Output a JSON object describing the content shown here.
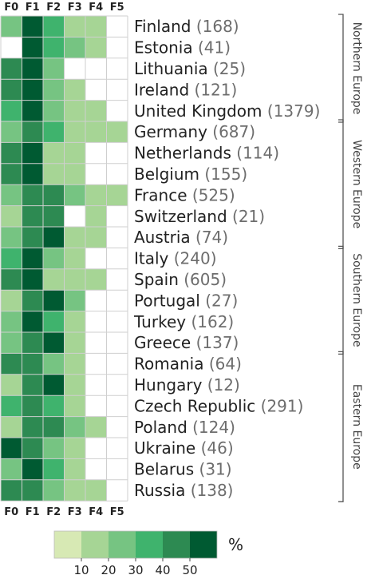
{
  "chart_data": {
    "type": "heatmap",
    "columns": [
      "F0",
      "F1",
      "F2",
      "F3",
      "F4",
      "F5"
    ],
    "rows": [
      {
        "country": "Finland",
        "count": "(168)",
        "values": [
          25,
          57,
          33,
          14,
          14,
          0
        ]
      },
      {
        "country": "Estonia",
        "count": "(41)",
        "values": [
          0,
          57,
          33,
          24,
          14,
          0
        ]
      },
      {
        "country": "Lithuania",
        "count": "(25)",
        "values": [
          43,
          50,
          24,
          0,
          0,
          0
        ]
      },
      {
        "country": "Ireland",
        "count": "(121)",
        "values": [
          48,
          57,
          24,
          14,
          0,
          0
        ]
      },
      {
        "country": "United Kingdom",
        "count": "(1379)",
        "values": [
          33,
          57,
          24,
          14,
          14,
          0
        ]
      },
      {
        "country": "Germany",
        "count": "(687)",
        "values": [
          24,
          48,
          33,
          14,
          14,
          14
        ]
      },
      {
        "country": "Netherlands",
        "count": "(114)",
        "values": [
          43,
          57,
          14,
          14,
          0,
          0
        ]
      },
      {
        "country": "Belgium",
        "count": "(155)",
        "values": [
          43,
          57,
          14,
          14,
          0,
          0
        ]
      },
      {
        "country": "France",
        "count": "(525)",
        "values": [
          24,
          43,
          43,
          24,
          14,
          14
        ]
      },
      {
        "country": "Switzerland",
        "count": "(21)",
        "values": [
          14,
          48,
          43,
          0,
          14,
          0
        ]
      },
      {
        "country": "Austria",
        "count": "(74)",
        "values": [
          24,
          43,
          50,
          14,
          14,
          0
        ]
      },
      {
        "country": "Italy",
        "count": "(240)",
        "values": [
          33,
          57,
          24,
          14,
          0,
          0
        ]
      },
      {
        "country": "Spain",
        "count": "(605)",
        "values": [
          43,
          57,
          14,
          14,
          14,
          0
        ]
      },
      {
        "country": "Portugal",
        "count": "(27)",
        "values": [
          14,
          43,
          50,
          24,
          0,
          0
        ]
      },
      {
        "country": "Turkey",
        "count": "(162)",
        "values": [
          24,
          57,
          33,
          14,
          0,
          0
        ]
      },
      {
        "country": "Greece",
        "count": "(137)",
        "values": [
          24,
          43,
          50,
          14,
          0,
          0
        ]
      },
      {
        "country": "Romania",
        "count": "(64)",
        "values": [
          48,
          43,
          24,
          14,
          0,
          0
        ]
      },
      {
        "country": "Hungary",
        "count": "(12)",
        "values": [
          14,
          48,
          50,
          14,
          0,
          0
        ]
      },
      {
        "country": "Czech Republic",
        "count": "(291)",
        "values": [
          33,
          48,
          33,
          14,
          0,
          0
        ]
      },
      {
        "country": "Poland",
        "count": "(124)",
        "values": [
          14,
          48,
          43,
          24,
          14,
          0
        ]
      },
      {
        "country": "Ukraine",
        "count": "(46)",
        "values": [
          57,
          43,
          24,
          14,
          0,
          0
        ]
      },
      {
        "country": "Belarus",
        "count": "(31)",
        "values": [
          24,
          50,
          33,
          14,
          0,
          0
        ]
      },
      {
        "country": "Russia",
        "count": "(138)",
        "values": [
          48,
          48,
          24,
          14,
          14,
          0
        ]
      }
    ],
    "regions": [
      {
        "label": "Northern Europe",
        "rows": [
          0,
          4
        ]
      },
      {
        "label": "Western Europe",
        "rows": [
          5,
          10
        ]
      },
      {
        "label": "Southern Europe",
        "rows": [
          11,
          15
        ]
      },
      {
        "label": "Eastern Europe",
        "rows": [
          16,
          22
        ]
      }
    ],
    "colorscale": {
      "thresholds": [
        0,
        10,
        20,
        30,
        40,
        50
      ],
      "colors": [
        "#ffffff",
        "#d7e9b4",
        "#a6d595",
        "#76c482",
        "#3fb36d",
        "#2d8a52",
        "#005a32"
      ],
      "ticks": [
        "10",
        "20",
        "30",
        "40",
        "50"
      ],
      "unit": "%"
    }
  }
}
